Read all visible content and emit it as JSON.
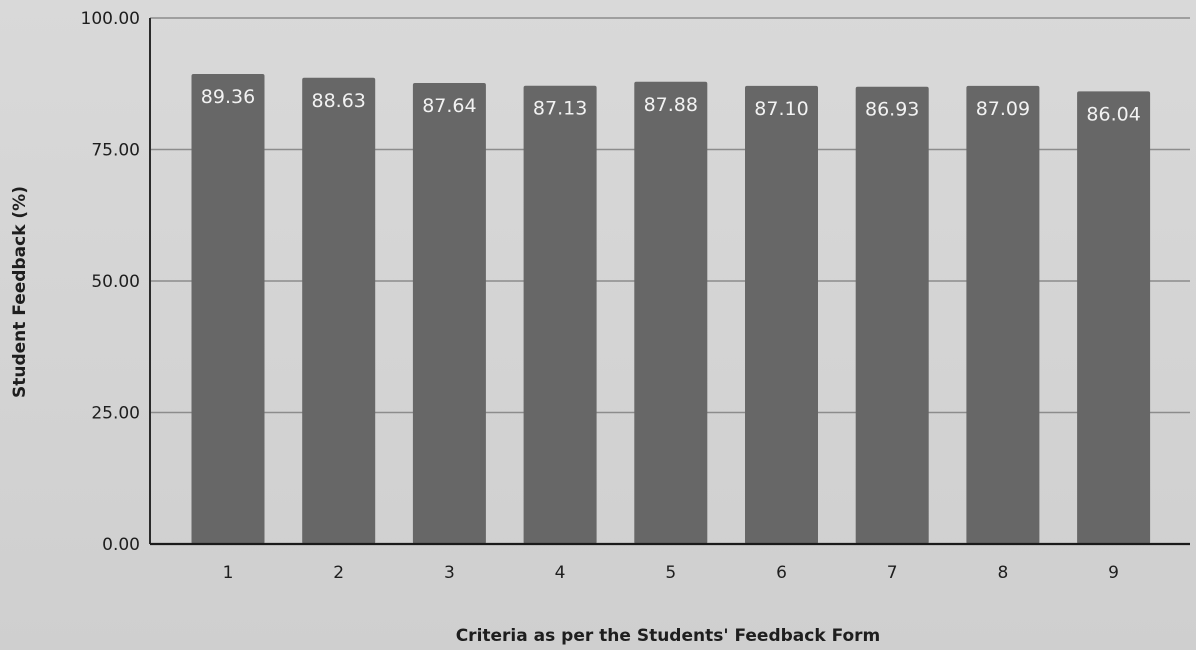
{
  "chart_data": {
    "type": "bar",
    "title": "",
    "xlabel": "Criteria as per the Students' Feedback Form",
    "ylabel": "Student Feedback (%)",
    "categories": [
      "1",
      "2",
      "3",
      "4",
      "5",
      "6",
      "7",
      "8",
      "9"
    ],
    "values": [
      89.36,
      88.63,
      87.64,
      87.13,
      87.88,
      87.1,
      86.93,
      87.09,
      86.04
    ],
    "value_labels": [
      "89.36",
      "88.63",
      "87.64",
      "87.13",
      "87.88",
      "87.10",
      "86.93",
      "87.09",
      "86.04"
    ],
    "ylim": [
      0,
      100
    ],
    "yticks": [
      0,
      25,
      50,
      75,
      100
    ],
    "ytick_labels": [
      "0.00",
      "25.00",
      "50.00",
      "75.00",
      "100.00"
    ],
    "grid": true,
    "legend": false,
    "bar_color": "#676767",
    "label_color": "#f2f2f2"
  }
}
